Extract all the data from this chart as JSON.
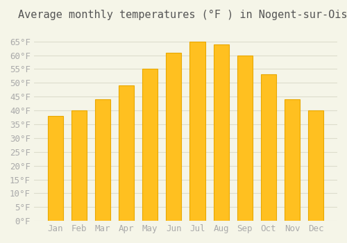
{
  "title": "Average monthly temperatures (°F ) in Nogent-sur-Oise",
  "months": [
    "Jan",
    "Feb",
    "Mar",
    "Apr",
    "May",
    "Jun",
    "Jul",
    "Aug",
    "Sep",
    "Oct",
    "Nov",
    "Dec"
  ],
  "values": [
    38,
    40,
    44,
    49,
    55,
    61,
    65,
    64,
    60,
    53,
    44,
    40
  ],
  "bar_color": "#FFC020",
  "bar_edge_color": "#E8A800",
  "background_color": "#F5F5E8",
  "grid_color": "#DDDDCC",
  "text_color": "#AAAAAA",
  "title_color": "#555555",
  "ylim": [
    0,
    70
  ],
  "yticks": [
    0,
    5,
    10,
    15,
    20,
    25,
    30,
    35,
    40,
    45,
    50,
    55,
    60,
    65
  ],
  "ylabel_suffix": "°F",
  "title_fontsize": 11,
  "tick_fontsize": 9
}
